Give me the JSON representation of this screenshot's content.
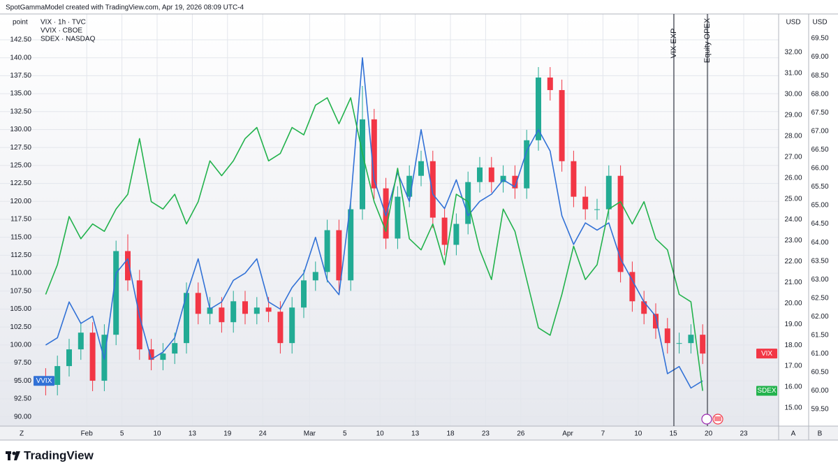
{
  "chart_data": {
    "type": "candlestick",
    "caption": "SpotGammaModel created with TradingView.com, Apr 19, 2026 08:09 UTC-4",
    "brand": "TradingView",
    "y_unit": "point",
    "y2_unit": "USD",
    "y3_unit": "USD",
    "ui_buttons": [
      "Z",
      "A",
      "B"
    ],
    "annotations": [
      "VIX EXP",
      "Equity OPEX"
    ],
    "categories": [
      null,
      null,
      null,
      null,
      "Feb",
      null,
      null,
      "5",
      null,
      null,
      "10",
      null,
      null,
      "13",
      null,
      null,
      "19",
      null,
      null,
      "24",
      null,
      null,
      null,
      "Mar",
      null,
      null,
      "5",
      null,
      null,
      "10",
      null,
      null,
      "13",
      null,
      null,
      "18",
      null,
      null,
      "23",
      null,
      null,
      "26",
      null,
      null,
      null,
      "Apr",
      null,
      null,
      "7",
      null,
      null,
      "10",
      null,
      null,
      "15",
      null,
      null,
      "20",
      null,
      null,
      "23",
      null
    ],
    "ylim": [
      88.7,
      146.1
    ],
    "yticks": [
      {
        "value": 90,
        "label": "90.00"
      },
      {
        "value": 92.5,
        "label": "92.50"
      },
      {
        "value": 95,
        "label": "95.00"
      },
      {
        "value": 97.5,
        "label": "97.50"
      },
      {
        "value": 100,
        "label": "100.00"
      },
      {
        "value": 102.5,
        "label": "102.50"
      },
      {
        "value": 105,
        "label": "105.00"
      },
      {
        "value": 107.5,
        "label": "107.50"
      },
      {
        "value": 110,
        "label": "110.00"
      },
      {
        "value": 112.5,
        "label": "112.50"
      },
      {
        "value": 115,
        "label": "115.00"
      },
      {
        "value": 117.5,
        "label": "117.50"
      },
      {
        "value": 120,
        "label": "120.00"
      },
      {
        "value": 122.5,
        "label": "122.50"
      },
      {
        "value": 125,
        "label": "125.00"
      },
      {
        "value": 127.5,
        "label": "127.50"
      },
      {
        "value": 130,
        "label": "130.00"
      },
      {
        "value": 132.5,
        "label": "132.50"
      },
      {
        "value": 135,
        "label": "135.00"
      },
      {
        "value": 137.5,
        "label": "137.50"
      },
      {
        "value": 140,
        "label": "140.00"
      },
      {
        "value": 142.5,
        "label": "142.50"
      }
    ],
    "y2lim": [
      14.13,
      33.84
    ],
    "y2ticks": [
      {
        "value": 15,
        "label": "15.00"
      },
      {
        "value": 16,
        "label": "16.00"
      },
      {
        "value": 17,
        "label": "17.00"
      },
      {
        "value": 18,
        "label": "18.00"
      },
      {
        "value": 19,
        "label": "19.00"
      },
      {
        "value": 20,
        "label": "20.00"
      },
      {
        "value": 21,
        "label": "21.00"
      },
      {
        "value": 22,
        "label": "22.00"
      },
      {
        "value": 23,
        "label": "23.00"
      },
      {
        "value": 24,
        "label": "24.00"
      },
      {
        "value": 25,
        "label": "25.00"
      },
      {
        "value": 26,
        "label": "26.00"
      },
      {
        "value": 27,
        "label": "27.00"
      },
      {
        "value": 28,
        "label": "28.00"
      },
      {
        "value": 29,
        "label": "29.00"
      },
      {
        "value": 30,
        "label": "30.00"
      },
      {
        "value": 31,
        "label": "31.00"
      },
      {
        "value": 32,
        "label": "32.00"
      }
    ],
    "y3lim": [
      59.05,
      70.16
    ],
    "y3ticks": [
      {
        "value": 59.5,
        "label": "59.50"
      },
      {
        "value": 60,
        "label": "60.00"
      },
      {
        "value": 60.5,
        "label": "60.50"
      },
      {
        "value": 61,
        "label": "61.00"
      },
      {
        "value": 61.5,
        "label": "61.50"
      },
      {
        "value": 62,
        "label": "62.00"
      },
      {
        "value": 62.5,
        "label": "62.50"
      },
      {
        "value": 63,
        "label": "63.00"
      },
      {
        "value": 63.5,
        "label": "63.50"
      },
      {
        "value": 64,
        "label": "64.00"
      },
      {
        "value": 64.5,
        "label": "64.50"
      },
      {
        "value": 65,
        "label": "65.00"
      },
      {
        "value": 65.5,
        "label": "65.50"
      },
      {
        "value": 66,
        "label": "66.00"
      },
      {
        "value": 66.5,
        "label": "66.50"
      },
      {
        "value": 67,
        "label": "67.00"
      },
      {
        "value": 67.5,
        "label": "67.50"
      },
      {
        "value": 68,
        "label": "68.00"
      },
      {
        "value": 68.5,
        "label": "68.50"
      },
      {
        "value": 69,
        "label": "69.00"
      },
      {
        "value": 69.5,
        "label": "69.50"
      }
    ],
    "grid": true,
    "series": [
      {
        "name": "VIX",
        "legend": "VIX · 1h · TVC",
        "type": "candlestick",
        "axis": "y2",
        "up_color": "#22ab94",
        "down_color": "#f23645",
        "tag_side": "right",
        "open": [
          16.4,
          16.1,
          17.0,
          17.8,
          18.6,
          16.3,
          18.5,
          22.5,
          21.1,
          17.8,
          17.3,
          17.6,
          18.1,
          20.5,
          19.5,
          19.8,
          19.1,
          20.1,
          19.5,
          19.8,
          19.6,
          18.1,
          19.8,
          21.1,
          21.5,
          23.5,
          21.1,
          24.5,
          28.8,
          25.5,
          23.1,
          25.1,
          26.1,
          26.8,
          24.1,
          22.8,
          23.8,
          25.8,
          26.5,
          25.8,
          26.1,
          25.5,
          27.8,
          30.8,
          30.2,
          26.8,
          25.1,
          24.5,
          24.5,
          26.1,
          21.5,
          20.1,
          19.5,
          18.8,
          18.1,
          18.1,
          18.5,
          null,
          null,
          null,
          null,
          null
        ],
        "high": [
          16.9,
          17.5,
          18.3,
          19.1,
          19.1,
          19.0,
          23.0,
          23.3,
          21.6,
          18.3,
          18.1,
          18.6,
          21.0,
          21.0,
          20.3,
          20.3,
          20.6,
          20.6,
          20.3,
          20.3,
          20.1,
          20.3,
          21.6,
          22.0,
          24.0,
          24.0,
          25.0,
          30.4,
          29.3,
          26.0,
          25.6,
          26.6,
          27.3,
          27.3,
          24.6,
          24.3,
          26.3,
          27.0,
          27.0,
          26.6,
          26.6,
          28.3,
          31.3,
          31.3,
          30.7,
          27.3,
          25.6,
          25.0,
          26.6,
          26.6,
          22.0,
          20.6,
          20.0,
          19.3,
          18.6,
          19.0,
          19.0,
          null,
          null,
          null,
          null,
          null
        ],
        "low": [
          15.6,
          15.6,
          16.5,
          17.3,
          15.8,
          15.8,
          18.0,
          20.6,
          17.3,
          16.8,
          16.8,
          17.1,
          17.6,
          19.0,
          19.0,
          18.6,
          18.6,
          19.0,
          19.0,
          19.1,
          17.6,
          17.6,
          19.3,
          20.6,
          21.0,
          20.6,
          20.6,
          24.0,
          25.0,
          22.6,
          22.6,
          24.6,
          25.6,
          23.6,
          22.3,
          22.3,
          23.3,
          25.3,
          25.3,
          25.3,
          25.0,
          25.0,
          27.3,
          29.7,
          26.3,
          24.6,
          24.0,
          24.0,
          24.0,
          21.0,
          19.6,
          19.0,
          18.3,
          17.6,
          17.6,
          17.6,
          17.1,
          null,
          null,
          null,
          null,
          null
        ],
        "close": [
          16.1,
          17.0,
          17.8,
          18.6,
          16.3,
          18.5,
          22.5,
          21.1,
          17.8,
          17.3,
          17.6,
          18.1,
          20.5,
          19.5,
          19.8,
          19.1,
          20.1,
          19.5,
          19.8,
          19.6,
          18.1,
          19.8,
          21.1,
          21.5,
          23.5,
          21.1,
          24.5,
          28.8,
          25.5,
          23.1,
          25.1,
          26.1,
          26.8,
          24.1,
          22.8,
          23.8,
          25.8,
          26.5,
          25.8,
          26.1,
          25.5,
          27.8,
          30.8,
          30.2,
          26.8,
          25.1,
          24.5,
          24.5,
          26.1,
          21.5,
          20.1,
          19.5,
          18.8,
          18.1,
          18.1,
          18.5,
          17.6,
          null,
          null,
          null,
          null,
          null
        ]
      },
      {
        "name": "VVIX",
        "legend": "VVIX · CBOE",
        "type": "line",
        "axis": "y",
        "color": "#3171d6",
        "tag_side": "left",
        "values": [
          100,
          101,
          106,
          103,
          104,
          98,
          110,
          112,
          104,
          98,
          99,
          101,
          107,
          112,
          105,
          106,
          109,
          110,
          112,
          106,
          105,
          108,
          110,
          115,
          109,
          107,
          120,
          140,
          123,
          118,
          124,
          120,
          130,
          121,
          119,
          123,
          118,
          120,
          121,
          123,
          122,
          127,
          130,
          127,
          118,
          114,
          117,
          116,
          117,
          112,
          109,
          106,
          104,
          96,
          97,
          94,
          95,
          null,
          null,
          null,
          null,
          null
        ]
      },
      {
        "name": "SDEX",
        "legend": "SDEX · NASDAQ",
        "type": "line",
        "axis": "y3",
        "color": "#22b24c",
        "tag_side": "right",
        "values": [
          62.6,
          63.4,
          64.7,
          64.1,
          64.5,
          64.3,
          64.9,
          65.3,
          66.8,
          65.1,
          64.9,
          65.3,
          64.5,
          65.1,
          66.2,
          65.8,
          66.2,
          66.8,
          67.1,
          66.2,
          66.4,
          67.1,
          66.9,
          67.7,
          67.9,
          67.2,
          67.9,
          66.4,
          65.1,
          64.3,
          66.0,
          64.1,
          63.8,
          64.5,
          63.4,
          65.3,
          65.1,
          63.8,
          63.0,
          64.9,
          64.3,
          63.0,
          61.7,
          61.5,
          62.6,
          63.9,
          63.0,
          63.4,
          64.9,
          65.1,
          64.5,
          65.1,
          64.1,
          63.8,
          62.6,
          62.4,
          60.0,
          null,
          null,
          null,
          null,
          null
        ]
      }
    ]
  }
}
